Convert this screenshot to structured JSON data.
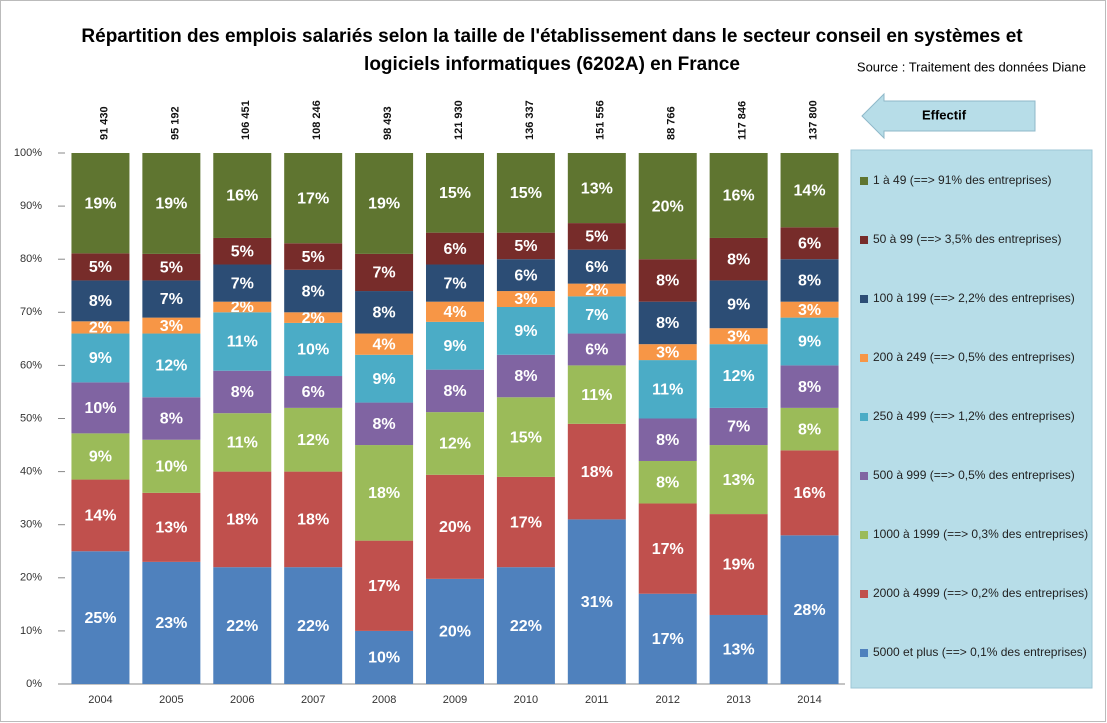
{
  "chart_data": {
    "type": "stacked_bar",
    "title": [
      "Répartition des emplois salariés selon la taille de l'établissement dans le secteur conseil en systèmes et",
      "logiciels informatiques (6202A) en France"
    ],
    "source": "Source : Traitement des données Diane",
    "effectif_title": "Effectif",
    "effectif_labels": [
      "91 430",
      "95 192",
      "106 451",
      "108 246",
      "98 493",
      "121 930",
      "136 337",
      "151 556",
      "88 766",
      "117 846",
      "137 800"
    ],
    "categories": [
      "2004",
      "2005",
      "2006",
      "2007",
      "2008",
      "2009",
      "2010",
      "2011",
      "2012",
      "2013",
      "2014"
    ],
    "ylim": [
      0,
      100
    ],
    "yticks": [
      {
        "value": 0,
        "label": "0%"
      },
      {
        "value": 10,
        "label": "10%"
      },
      {
        "value": 20,
        "label": "20%"
      },
      {
        "value": 30,
        "label": "30%"
      },
      {
        "value": 40,
        "label": "40%"
      },
      {
        "value": 50,
        "label": "50%"
      },
      {
        "value": 60,
        "label": "60%"
      },
      {
        "value": 70,
        "label": "70%"
      },
      {
        "value": 80,
        "label": "80%"
      },
      {
        "value": 90,
        "label": "90%"
      },
      {
        "value": 100,
        "label": "100%"
      }
    ],
    "series": [
      {
        "name": "5000 et plus (==> 0,1% des entreprises)",
        "color": "#4f81bd",
        "values": [
          25,
          23,
          22,
          22,
          10,
          19.8,
          22,
          31,
          17,
          13,
          28
        ],
        "value_labels": [
          "25%",
          "23%",
          "22%",
          "22%",
          "10%",
          "20%",
          "22%",
          "31%",
          "17%",
          "13%",
          "28%"
        ]
      },
      {
        "name": "2000 à 4999 (==> 0,2% des entreprises)",
        "color": "#c0504d",
        "values": [
          13.5,
          13,
          18,
          18,
          17,
          19.6,
          17,
          18,
          17,
          19,
          16
        ],
        "value_labels": [
          "14%",
          "13%",
          "18%",
          "18%",
          "17%",
          "20%",
          "17%",
          "18%",
          "17%",
          "19%",
          "16%"
        ]
      },
      {
        "name": "1000 à 1999 (==> 0,3% des entreprises)",
        "color": "#9bbb59",
        "values": [
          8.7,
          10,
          11,
          12,
          18,
          11.8,
          15,
          11,
          8,
          13,
          8
        ],
        "value_labels": [
          "9%",
          "10%",
          "11%",
          "12%",
          "18%",
          "12%",
          "15%",
          "11%",
          "8%",
          "13%",
          "8%"
        ]
      },
      {
        "name": "500 à 999 (==> 0,5% des entreprises)",
        "color": "#8064a2",
        "values": [
          9.6,
          8,
          8,
          6,
          8,
          8,
          8,
          6,
          8,
          7,
          8
        ],
        "value_labels": [
          "10%",
          "8%",
          "8%",
          "6%",
          "8%",
          "8%",
          "8%",
          "6%",
          "8%",
          "7%",
          "8%"
        ]
      },
      {
        "name": "250 à 499 (==> 1,2% des entreprises)",
        "color": "#4bacc6",
        "values": [
          9.2,
          12,
          11,
          10,
          9,
          9,
          9,
          7,
          11,
          12,
          9
        ],
        "value_labels": [
          "9%",
          "12%",
          "11%",
          "10%",
          "9%",
          "9%",
          "9%",
          "7%",
          "11%",
          "12%",
          "9%"
        ]
      },
      {
        "name": "200 à 249 (==> 0,5% des entreprises)",
        "color": "#f79646",
        "values": [
          2.3,
          3,
          2,
          2,
          4,
          3.8,
          3,
          2.4,
          3,
          3,
          3
        ],
        "value_labels": [
          "2%",
          "3%",
          "2%",
          "2%",
          "4%",
          "4%",
          "3%",
          "2%",
          "3%",
          "3%",
          "3%"
        ]
      },
      {
        "name": "100 à 199 (==> 2,2% des entreprises)",
        "color": "#2c4d75",
        "values": [
          7.7,
          7,
          7,
          8,
          8,
          7,
          6,
          6.4,
          8,
          9,
          8
        ],
        "value_labels": [
          "8%",
          "7%",
          "7%",
          "8%",
          "8%",
          "7%",
          "6%",
          "6%",
          "8%",
          "9%",
          "8%"
        ]
      },
      {
        "name": "50 à 99 (==> 3,5% des entreprises)",
        "color": "#772c2a",
        "values": [
          5.1,
          5,
          5,
          5,
          7,
          6,
          5,
          5,
          8,
          8,
          6
        ],
        "value_labels": [
          "5%",
          "5%",
          "5%",
          "5%",
          "7%",
          "6%",
          "5%",
          "5%",
          "8%",
          "8%",
          "6%"
        ]
      },
      {
        "name": "1 à 49 (==> 91% des entreprises)",
        "color": "#5f7530",
        "values": [
          18.9,
          19,
          16,
          17,
          19,
          15,
          15,
          13.2,
          20,
          16,
          14
        ],
        "value_labels": [
          "19%",
          "19%",
          "16%",
          "17%",
          "19%",
          "15%",
          "15%",
          "13%",
          "20%",
          "16%",
          "14%"
        ]
      }
    ]
  }
}
